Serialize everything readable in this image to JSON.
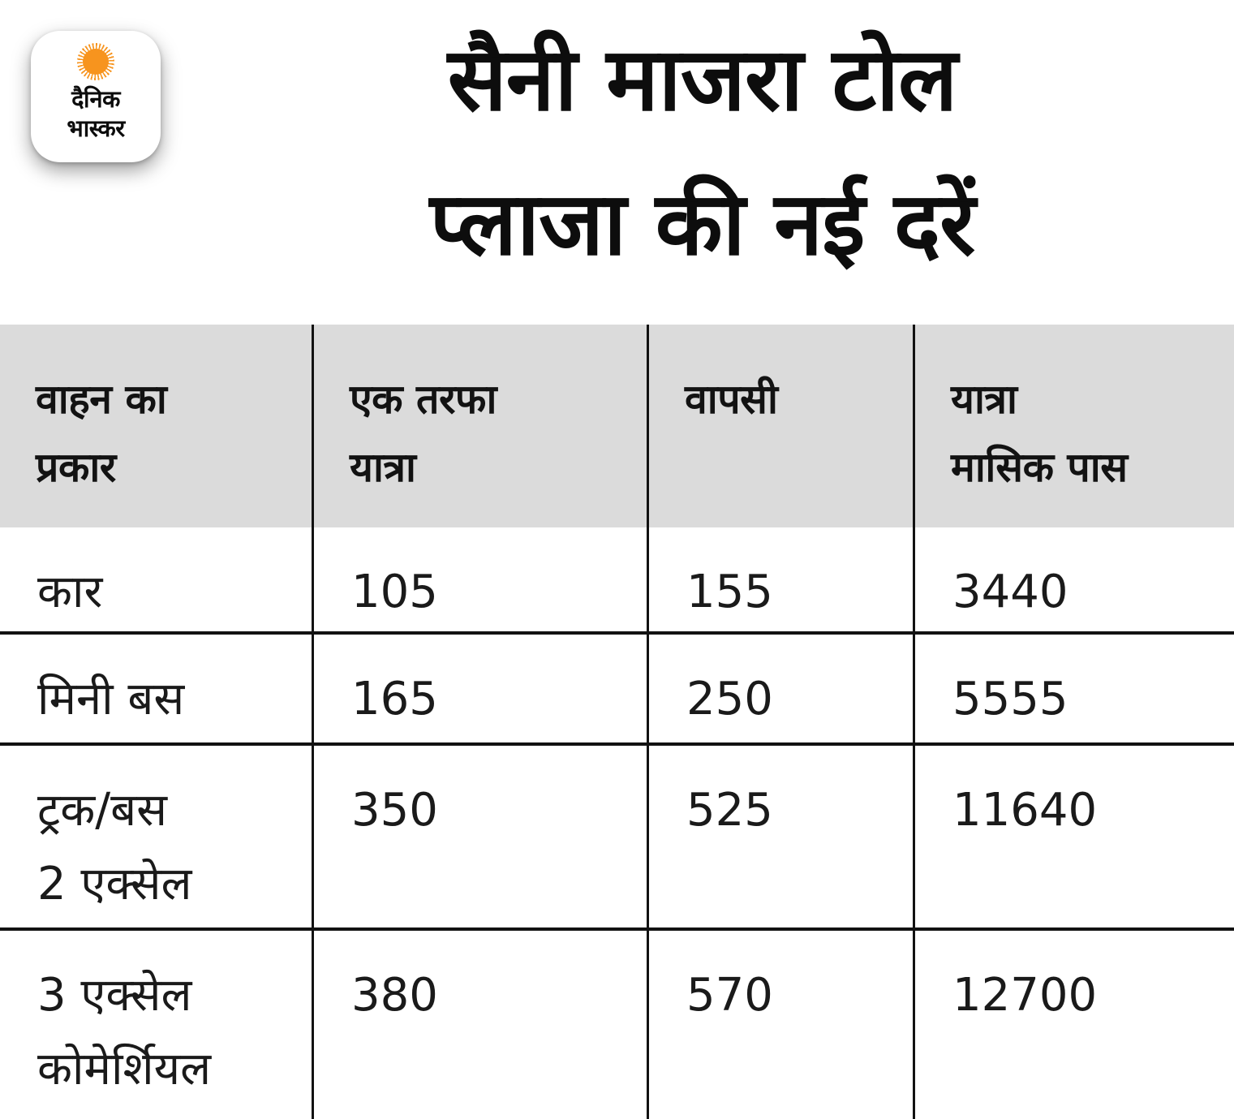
{
  "brand": {
    "name_line1": "दैनिक",
    "name_line2": "भास्कर"
  },
  "title": {
    "line1": "सैनी माजरा टोल",
    "line2": "प्लाजा की नई दरें"
  },
  "table": {
    "columns": [
      "वाहन का\nप्रकार",
      "एक तरफा\nयात्रा",
      "वापसी",
      "यात्रा\nमासिक पास"
    ],
    "rows": [
      [
        "कार",
        "105",
        "155",
        "3440"
      ],
      [
        "मिनी बस",
        "165",
        "250",
        "5555"
      ],
      [
        "ट्रक/बस\n2 एक्सेल",
        "350",
        "525",
        "11640"
      ],
      [
        "3 एक्सेल\nकोमेर्शियल",
        "380",
        "570",
        "12700"
      ]
    ]
  },
  "colors": {
    "sun": "#f7941e",
    "header_bg": "#dbdbdb",
    "grid_line": "#121212",
    "text": "#161616"
  },
  "chart_data": {
    "type": "table",
    "title": "सैनी माजरा टोल प्लाजा की नई दरें",
    "columns": [
      "वाहन का प्रकार",
      "एक तरफा यात्रा",
      "वापसी",
      "यात्रा मासिक पास"
    ],
    "rows": [
      [
        "कार",
        105,
        155,
        3440
      ],
      [
        "मिनी बस",
        165,
        250,
        5555
      ],
      [
        "ट्रक/बस 2 एक्सेल",
        350,
        525,
        11640
      ],
      [
        "3 एक्सेल कोमेर्शियल",
        380,
        570,
        12700
      ]
    ]
  }
}
